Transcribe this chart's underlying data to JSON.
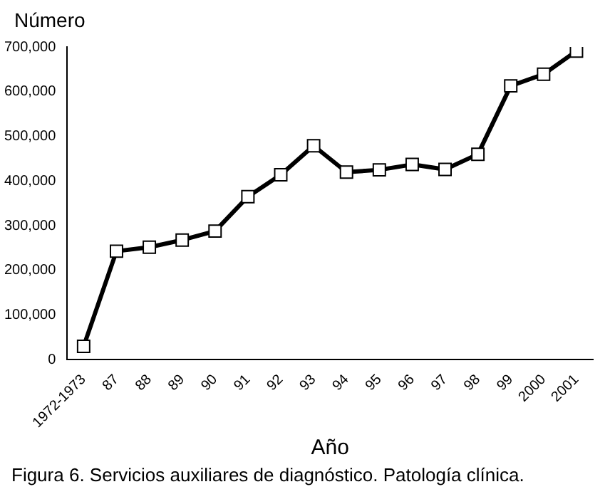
{
  "chart_data": {
    "type": "line",
    "ylabel": "Número",
    "xlabel": "Año",
    "categories": [
      "1972-1973",
      "87",
      "88",
      "89",
      "90",
      "91",
      "92",
      "93",
      "94",
      "95",
      "96",
      "97",
      "98",
      "99",
      "2000",
      "2001"
    ],
    "series": [
      {
        "color": "#000000",
        "values": [
          30000,
          243000,
          252000,
          268000,
          288000,
          365000,
          414000,
          479000,
          420000,
          425000,
          437000,
          426000,
          460000,
          613000,
          639000,
          691000
        ]
      }
    ],
    "ylim": [
      0,
      700000
    ],
    "yticks": [
      {
        "value": 0,
        "label": "0"
      },
      {
        "value": 100000,
        "label": "100,000"
      },
      {
        "value": 200000,
        "label": "200,000"
      },
      {
        "value": 300000,
        "label": "300,000"
      },
      {
        "value": 400000,
        "label": "400,000"
      },
      {
        "value": 500000,
        "label": "500,000"
      },
      {
        "value": 600000,
        "label": "600,000"
      },
      {
        "value": 700000,
        "label": "700,000"
      }
    ],
    "grid": false,
    "legend": false,
    "marker": "square",
    "line_style": "solid",
    "annotations": [
      "Figura 6. Servicios auxiliares de diagnóstico. Patología clínica."
    ]
  }
}
